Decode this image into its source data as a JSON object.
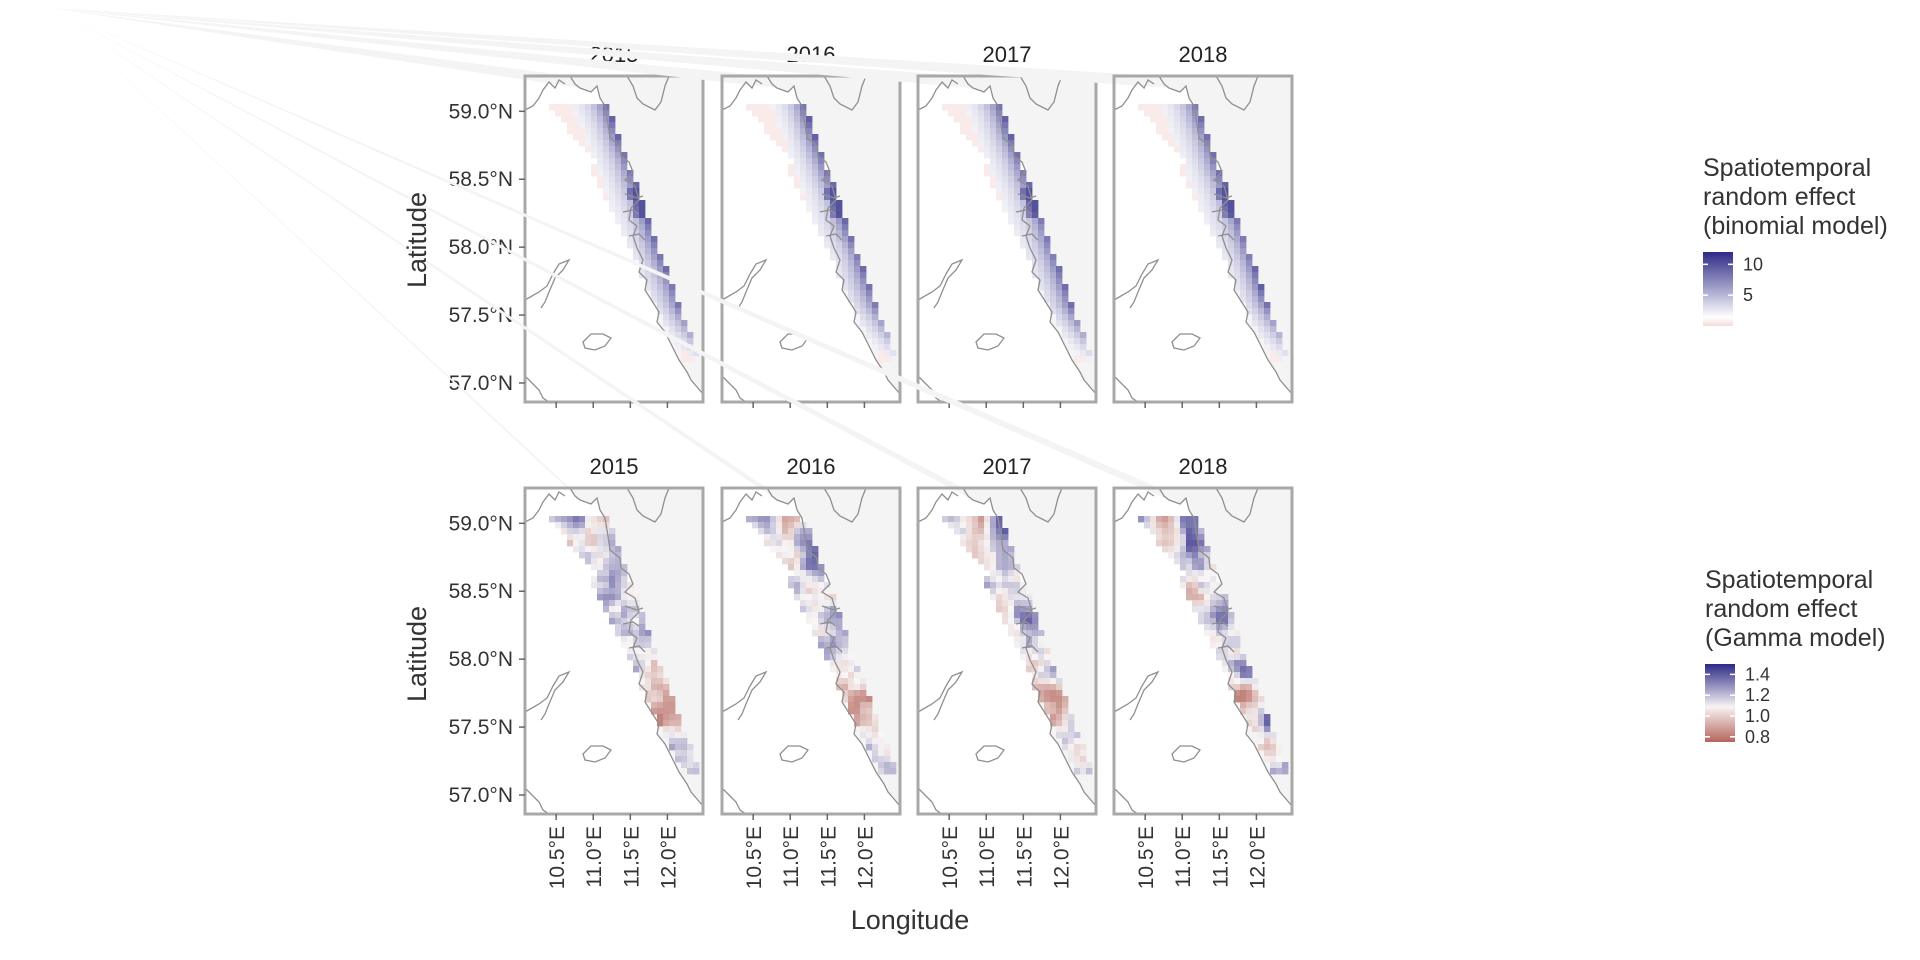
{
  "figure": {
    "x_axis_title": "Longitude",
    "y_axis_title": "Latitude",
    "y_tick_labels": [
      "59.0°N",
      "58.5°N",
      "58.0°N",
      "57.5°N",
      "57.0°N"
    ],
    "x_tick_labels": [
      "10.5°E",
      "11.0°E",
      "11.5°E",
      "12.0°E"
    ]
  },
  "rows": [
    {
      "model": "binomial",
      "panel_titles": [
        "2015",
        "2016",
        "2017",
        "2018"
      ],
      "legend": {
        "title_lines": [
          "Spatiotemporal",
          "random effect",
          "(binomial model)"
        ],
        "tick_labels": [
          "10",
          "5"
        ],
        "colors": [
          "#2e2a86",
          "#ffffff",
          "#f3dcd8"
        ]
      }
    },
    {
      "model": "Gamma",
      "panel_titles": [
        "2015",
        "2016",
        "2017",
        "2018"
      ],
      "legend": {
        "title_lines": [
          "Spatiotemporal",
          "random effect",
          "(Gamma model)"
        ],
        "tick_labels": [
          "1.4",
          "1.2",
          "1.0",
          "0.8"
        ],
        "colors": [
          "#2e2a86",
          "#f7f4f4",
          "#b5655c"
        ]
      }
    }
  ],
  "chart_data": {
    "type": "heatmap",
    "panels_per_row": 4,
    "years": [
      2015,
      2016,
      2017,
      2018
    ],
    "x_range_degE": [
      10.08,
      12.48
    ],
    "y_range_degN": [
      56.86,
      59.26
    ],
    "x_ticks": [
      10.5,
      11.0,
      11.5,
      12.0
    ],
    "y_ticks": [
      57.0,
      57.5,
      58.0,
      58.5,
      59.0
    ],
    "binomial_colorbar_range": [
      0,
      12
    ],
    "binomial_colorbar_ticks": [
      5,
      10
    ],
    "gamma_colorbar_range": [
      0.75,
      1.5
    ],
    "gamma_colorbar_ticks": [
      0.8,
      1.0,
      1.2,
      1.4
    ]
  }
}
